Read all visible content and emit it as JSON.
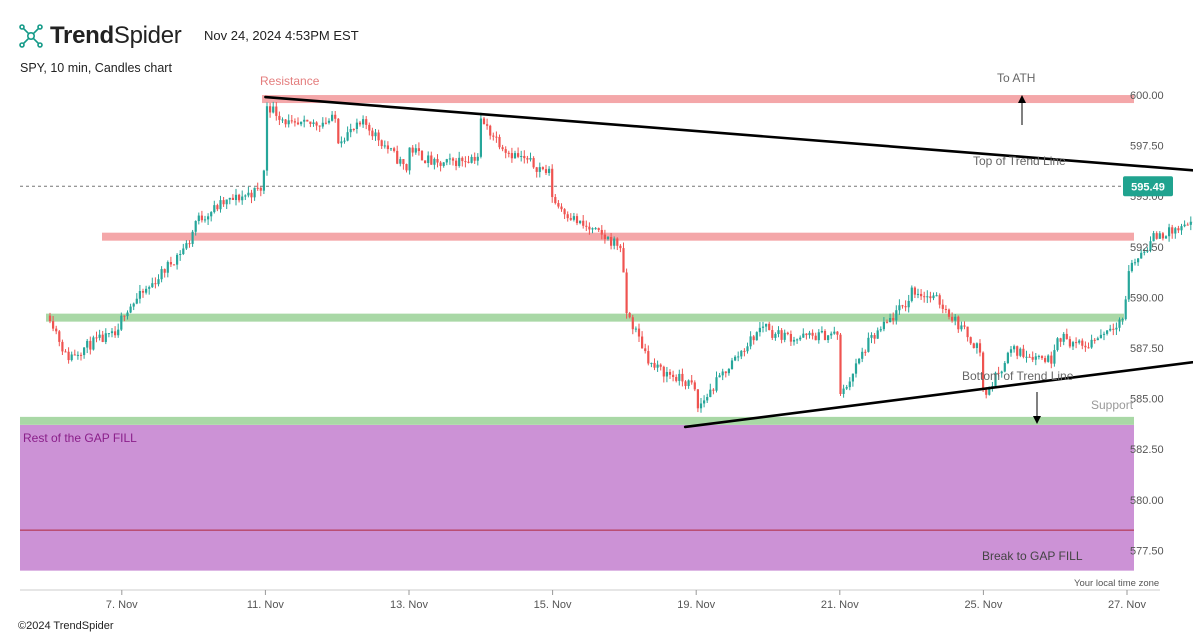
{
  "header": {
    "brand_bold": "Trend",
    "brand_light": "Spider",
    "datetime": "Nov 24, 2024 4:53PM EST",
    "subtitle": "SPY, 10 min, Candles chart",
    "footer": "©2024 TrendSpider",
    "logo_icon": "trendspider-logo-icon"
  },
  "colors": {
    "up": "#26a69a",
    "down": "#ef5350",
    "resistance": "#f4a7a9",
    "support": "#a9d8a6",
    "gap": "#cc92d6",
    "gap_line": "#b0273a",
    "break_band": "#fde08a",
    "price_badge": "#20a38f",
    "brand_accent": "#159a88"
  },
  "chart_data": {
    "type": "candlestick",
    "symbol": "SPY",
    "interval": "10 min",
    "ylim": [
      575.9,
      601.3
    ],
    "y_ticks": [
      "600.00",
      "597.50",
      "595.00",
      "592.50",
      "590.00",
      "587.50",
      "585.00",
      "582.50",
      "580.00",
      "577.50"
    ],
    "x_ticks": [
      "7. Nov",
      "11. Nov",
      "13. Nov",
      "15. Nov",
      "19. Nov",
      "21. Nov",
      "25. Nov",
      "27. Nov"
    ],
    "last_price": "595.49",
    "price_path": [
      [
        "11/06 09:30",
        589.1
      ],
      [
        "11/06 11:00",
        587.0
      ],
      [
        "11/06 13:30",
        587.8
      ],
      [
        "11/06 15:50",
        588.2
      ],
      [
        "11/07 09:30",
        589.2
      ],
      [
        "11/07 12:00",
        590.5
      ],
      [
        "11/07 15:50",
        592.9
      ],
      [
        "11/08 09:30",
        593.7
      ],
      [
        "11/08 12:00",
        594.6
      ],
      [
        "11/08 15:50",
        595.4
      ],
      [
        "11/11 09:30",
        599.6
      ],
      [
        "11/11 12:00",
        598.4
      ],
      [
        "11/11 15:50",
        598.8
      ],
      [
        "11/12 09:30",
        597.8
      ],
      [
        "11/12 12:00",
        598.6
      ],
      [
        "11/12 15:50",
        596.3
      ],
      [
        "11/13 09:30",
        597.4
      ],
      [
        "11/13 12:00",
        596.5
      ],
      [
        "11/13 15:50",
        597.0
      ],
      [
        "11/14 09:30",
        598.7
      ],
      [
        "11/14 12:00",
        597.2
      ],
      [
        "11/14 15:50",
        596.1
      ],
      [
        "11/15 09:30",
        594.8
      ],
      [
        "11/15 12:00",
        593.6
      ],
      [
        "11/15 15:50",
        592.5
      ],
      [
        "11/18 09:30",
        589.5
      ],
      [
        "11/18 12:00",
        586.6
      ],
      [
        "11/18 15:50",
        585.6
      ],
      [
        "11/19 09:30",
        584.4
      ],
      [
        "11/19 12:00",
        586.3
      ],
      [
        "11/19 15:50",
        588.8
      ],
      [
        "11/20 09:30",
        588.3
      ],
      [
        "11/20 12:00",
        588.0
      ],
      [
        "11/20 15:50",
        588.2
      ],
      [
        "11/21 09:30",
        585.0
      ],
      [
        "11/21 12:00",
        587.7
      ],
      [
        "11/21 15:50",
        589.9
      ],
      [
        "11/22 09:30",
        590.4
      ],
      [
        "11/22 12:00",
        589.8
      ],
      [
        "11/22 15:50",
        587.3
      ],
      [
        "11/25 09:30",
        585.0
      ],
      [
        "11/25 12:00",
        587.4
      ],
      [
        "11/25 15:50",
        586.9
      ],
      [
        "11/26 09:30",
        588.2
      ],
      [
        "11/26 12:00",
        587.5
      ],
      [
        "11/26 15:50",
        589.1
      ],
      [
        "11/27 09:30",
        591.3
      ],
      [
        "11/27 12:00",
        593.0
      ],
      [
        "11/27 15:50",
        593.6
      ],
      [
        "11/29 09:30",
        594.7
      ],
      [
        "11/29 12:00",
        593.8
      ],
      [
        "11/29 15:50",
        594.5
      ],
      [
        "12/02 09:30",
        595.7
      ],
      [
        "12/02 12:00",
        594.0
      ],
      [
        "12/02 15:50",
        595.5
      ]
    ],
    "levels": [
      {
        "name": "resistance-top",
        "y": 599.8,
        "kind": "resistance"
      },
      {
        "name": "resistance-mid",
        "y": 593.0,
        "kind": "resistance"
      },
      {
        "name": "support-mid",
        "y": 589.0,
        "kind": "support"
      },
      {
        "name": "support-bottom",
        "y": 583.9,
        "kind": "support"
      }
    ],
    "gap_fill": {
      "from": 576.5,
      "to": 583.7,
      "midline": 578.5
    },
    "break_band": {
      "from": 575.9,
      "to": 576.5
    },
    "trend_lines": [
      {
        "name": "upper-trend-line",
        "from": [
          "11/11 09:30",
          599.9
        ],
        "to": [
          "12/05 15:00",
          594.9
        ]
      },
      {
        "name": "lower-trend-line",
        "from": [
          "11/18 15:00",
          583.6
        ],
        "to": [
          "12/06 09:30",
          589.1
        ]
      }
    ],
    "annotations": {
      "resistance": "Resistance",
      "to_ath": "To ATH",
      "top_trend": "Top of Trend Line",
      "bottom_trend": "Bottom of Trend Line",
      "support": "Support",
      "gap_fill": "Rest of the GAP FILL",
      "break_gap": "Break to GAP FILL",
      "timezone": "Your local time zone"
    }
  }
}
